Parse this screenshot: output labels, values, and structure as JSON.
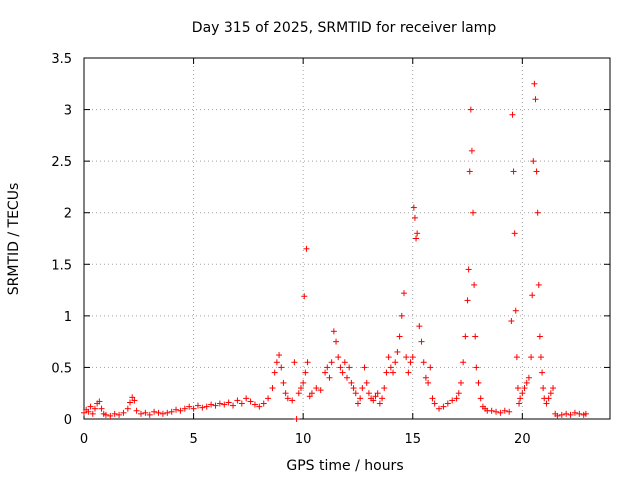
{
  "chart_data": {
    "type": "scatter",
    "title": "Day 315 of 2025, SRMTID for receiver lamp",
    "xlabel": "GPS time / hours",
    "ylabel": "SRMTID / TECUs",
    "xlim": [
      0,
      24
    ],
    "ylim": [
      0,
      3.5
    ],
    "xticks": [
      0,
      5,
      10,
      15,
      20
    ],
    "xtick_labels": [
      "0",
      "5",
      "10",
      "15",
      "20"
    ],
    "yticks": [
      0,
      0.5,
      1,
      1.5,
      2,
      2.5,
      3,
      3.5
    ],
    "ytick_labels": [
      "0",
      "0.5",
      "1",
      "1.5",
      "2",
      "2.5",
      "3",
      "3.5"
    ],
    "grid": true,
    "marker": "+",
    "color": "#ff0000",
    "series": [
      {
        "name": "lamp",
        "x": [
          0.0,
          0.1,
          0.2,
          0.3,
          0.4,
          0.5,
          0.6,
          0.7,
          0.8,
          0.9,
          1.0,
          1.2,
          1.4,
          1.6,
          1.8,
          2.0,
          2.1,
          2.2,
          2.3,
          2.4,
          2.6,
          2.8,
          3.0,
          3.2,
          3.4,
          3.6,
          3.8,
          4.0,
          4.2,
          4.4,
          4.6,
          4.8,
          5.0,
          5.2,
          5.4,
          5.6,
          5.8,
          6.0,
          6.2,
          6.4,
          6.6,
          6.8,
          7.0,
          7.2,
          7.4,
          7.6,
          7.8,
          8.0,
          8.2,
          8.4,
          8.6,
          8.7,
          8.8,
          8.9,
          9.0,
          9.1,
          9.2,
          9.3,
          9.5,
          9.6,
          9.7,
          9.8,
          9.9,
          10.0,
          10.05,
          10.1,
          10.15,
          10.2,
          10.3,
          10.4,
          10.6,
          10.8,
          11.0,
          11.1,
          11.2,
          11.3,
          11.4,
          11.5,
          11.6,
          11.7,
          11.8,
          11.9,
          12.0,
          12.1,
          12.2,
          12.3,
          12.4,
          12.5,
          12.6,
          12.7,
          12.8,
          12.9,
          13.0,
          13.1,
          13.2,
          13.3,
          13.4,
          13.5,
          13.6,
          13.7,
          13.8,
          13.9,
          14.0,
          14.1,
          14.2,
          14.3,
          14.4,
          14.5,
          14.6,
          14.7,
          14.8,
          14.9,
          15.0,
          15.05,
          15.1,
          15.15,
          15.2,
          15.3,
          15.4,
          15.5,
          15.6,
          15.7,
          15.8,
          15.9,
          16.0,
          16.2,
          16.4,
          16.6,
          16.8,
          17.0,
          17.1,
          17.2,
          17.3,
          17.4,
          17.5,
          17.55,
          17.6,
          17.65,
          17.7,
          17.75,
          17.8,
          17.85,
          17.9,
          18.0,
          18.1,
          18.2,
          18.3,
          18.4,
          18.6,
          18.8,
          19.0,
          19.2,
          19.4,
          19.5,
          19.55,
          19.6,
          19.65,
          19.7,
          19.75,
          19.8,
          19.85,
          19.9,
          20.0,
          20.1,
          20.2,
          20.3,
          20.4,
          20.45,
          20.5,
          20.55,
          20.6,
          20.65,
          20.7,
          20.75,
          20.8,
          20.85,
          20.9,
          20.95,
          21.0,
          21.1,
          21.2,
          21.3,
          21.4,
          21.5,
          21.6,
          21.8,
          22.0,
          22.2,
          22.4,
          22.6,
          22.8,
          22.9
        ],
        "y": [
          0.06,
          0.09,
          0.07,
          0.12,
          0.05,
          0.1,
          0.15,
          0.17,
          0.1,
          0.05,
          0.04,
          0.03,
          0.05,
          0.04,
          0.06,
          0.1,
          0.16,
          0.21,
          0.18,
          0.08,
          0.05,
          0.06,
          0.04,
          0.07,
          0.06,
          0.05,
          0.06,
          0.07,
          0.09,
          0.08,
          0.1,
          0.12,
          0.1,
          0.13,
          0.11,
          0.12,
          0.14,
          0.13,
          0.15,
          0.14,
          0.16,
          0.13,
          0.18,
          0.15,
          0.2,
          0.17,
          0.14,
          0.12,
          0.15,
          0.2,
          0.3,
          0.45,
          0.55,
          0.62,
          0.5,
          0.35,
          0.25,
          0.2,
          0.18,
          0.55,
          0.0,
          0.25,
          0.3,
          0.35,
          1.19,
          0.45,
          1.65,
          0.55,
          0.22,
          0.25,
          0.3,
          0.28,
          0.45,
          0.5,
          0.4,
          0.55,
          0.85,
          0.75,
          0.6,
          0.5,
          0.45,
          0.55,
          0.4,
          0.5,
          0.35,
          0.3,
          0.25,
          0.15,
          0.2,
          0.3,
          0.5,
          0.35,
          0.25,
          0.2,
          0.18,
          0.22,
          0.25,
          0.15,
          0.2,
          0.3,
          0.45,
          0.6,
          0.5,
          0.45,
          0.55,
          0.65,
          0.8,
          1.0,
          1.22,
          0.6,
          0.45,
          0.55,
          0.6,
          2.05,
          1.95,
          1.75,
          1.8,
          0.9,
          0.75,
          0.55,
          0.4,
          0.35,
          0.5,
          0.2,
          0.15,
          0.1,
          0.12,
          0.15,
          0.18,
          0.2,
          0.25,
          0.35,
          0.55,
          0.8,
          1.15,
          1.45,
          2.4,
          3.0,
          2.6,
          2.0,
          1.3,
          0.8,
          0.5,
          0.35,
          0.2,
          0.12,
          0.1,
          0.08,
          0.08,
          0.07,
          0.06,
          0.08,
          0.07,
          0.95,
          2.95,
          2.4,
          1.8,
          1.05,
          0.6,
          0.3,
          0.15,
          0.2,
          0.25,
          0.3,
          0.35,
          0.4,
          0.6,
          1.2,
          2.5,
          3.25,
          3.1,
          2.4,
          2.0,
          1.3,
          0.8,
          0.6,
          0.45,
          0.3,
          0.2,
          0.15,
          0.2,
          0.25,
          0.3,
          0.05,
          0.03,
          0.04,
          0.05,
          0.04,
          0.06,
          0.05,
          0.04,
          0.05
        ]
      }
    ]
  }
}
